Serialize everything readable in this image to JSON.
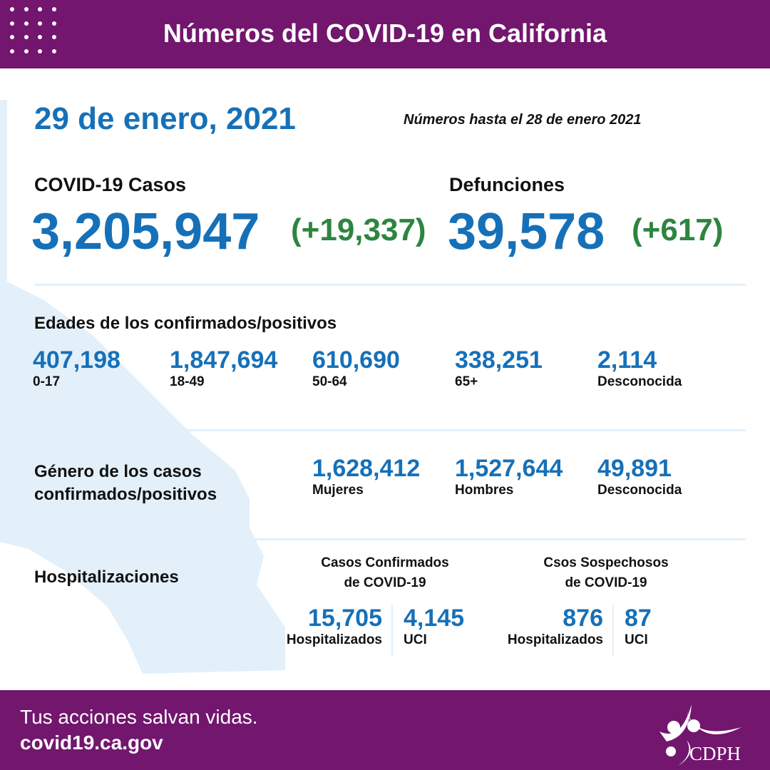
{
  "header": {
    "title": "Números del COVID-19 en California"
  },
  "date": "29 de enero, 2021",
  "as_of": "Números hasta el 28 de enero 2021",
  "cases": {
    "label": "COVID-19 Casos",
    "total": "3,205,947",
    "change": "(+19,337)"
  },
  "deaths": {
    "label": "Defunciones",
    "total": "39,578",
    "change": "(+617)"
  },
  "ages": {
    "title": "Edades de los confirmados/positivos",
    "items": [
      {
        "value": "407,198",
        "label": "0-17"
      },
      {
        "value": "1,847,694",
        "label": "18-49"
      },
      {
        "value": "610,690",
        "label": "50-64"
      },
      {
        "value": "338,251",
        "label": "65+"
      },
      {
        "value": "2,114",
        "label": "Desconocida"
      }
    ]
  },
  "gender": {
    "title_line1": "Género de los casos",
    "title_line2": "confirmados/positivos",
    "items": [
      {
        "value": "1,628,412",
        "label": "Mujeres"
      },
      {
        "value": "1,527,644",
        "label": "Hombres"
      },
      {
        "value": "49,891",
        "label": "Desconocida"
      }
    ]
  },
  "hosp": {
    "title": "Hospitalizaciones",
    "confirmed": {
      "line1": "Casos Confirmados",
      "line2": "de COVID-19",
      "hosp_value": "15,705",
      "hosp_label": "Hospitalizados",
      "icu_value": "4,145",
      "icu_label": "UCI"
    },
    "suspected": {
      "line1": "Csos Sospechosos",
      "line2": "de COVID-19",
      "hosp_value": "876",
      "hosp_label": "Hospitalizados",
      "icu_value": "87",
      "icu_label": "UCI"
    }
  },
  "footer": {
    "tagline": "Tus acciones salvan vidas.",
    "url": "covid19.ca.gov",
    "logo_text": "CDPH"
  },
  "colors": {
    "purple": "#72166e",
    "blue": "#1670b8",
    "green": "#2e8540",
    "map": "#e3f0fa"
  }
}
